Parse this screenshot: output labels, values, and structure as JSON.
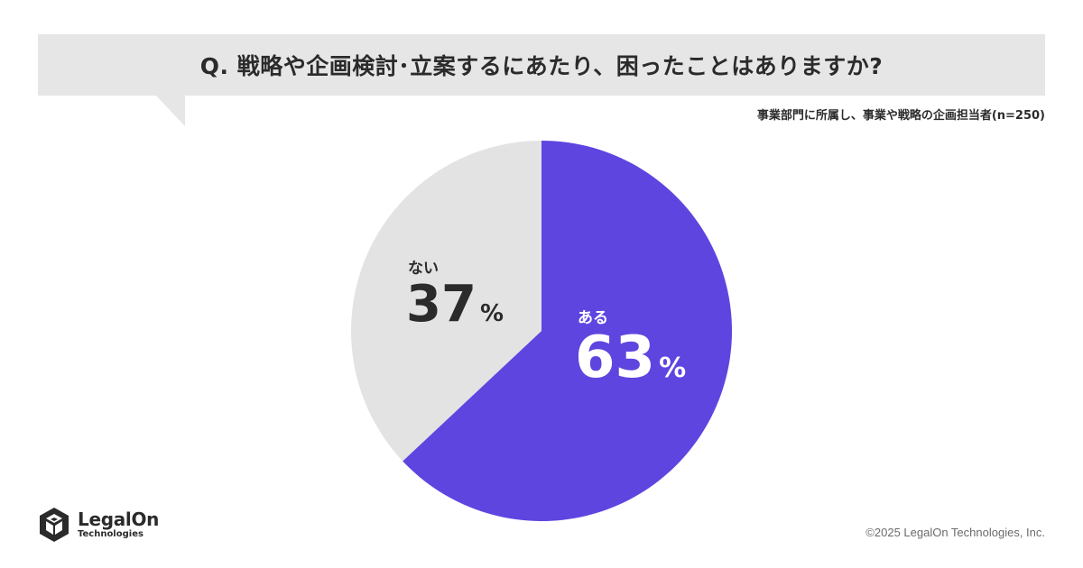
{
  "header": {
    "question": "Q. 戦略や企画検討･立案するにあたり、困ったことはありますか?",
    "subtitle": "事業部門に所属し、事業や戦略の企画担当者(n=250)"
  },
  "chart_data": {
    "type": "pie",
    "title": "Q. 戦略や企画検討･立案するにあたり、困ったことはありますか?",
    "subtitle": "事業部門に所属し、事業や戦略の企画担当者(n=250)",
    "unit": "%",
    "start_angle_deg": 0,
    "direction": "clockwise",
    "slices": [
      {
        "label": "ある",
        "value": 63,
        "display": "63",
        "color": "#5e45e0",
        "text_color": "#ffffff"
      },
      {
        "label": "ない",
        "value": 37,
        "display": "37",
        "color": "#e3e3e3",
        "text_color": "#2b2b2b"
      }
    ]
  },
  "colors": {
    "banner": "#e6e6e6",
    "accent": "#5e45e0",
    "text": "#2b2b2b"
  },
  "footer": {
    "logo_name": "LegalOn",
    "logo_sub": "Technologies",
    "logo_icon": "legalon-cube-logo-icon",
    "copyright": "©2025 LegalOn Technologies, Inc."
  }
}
